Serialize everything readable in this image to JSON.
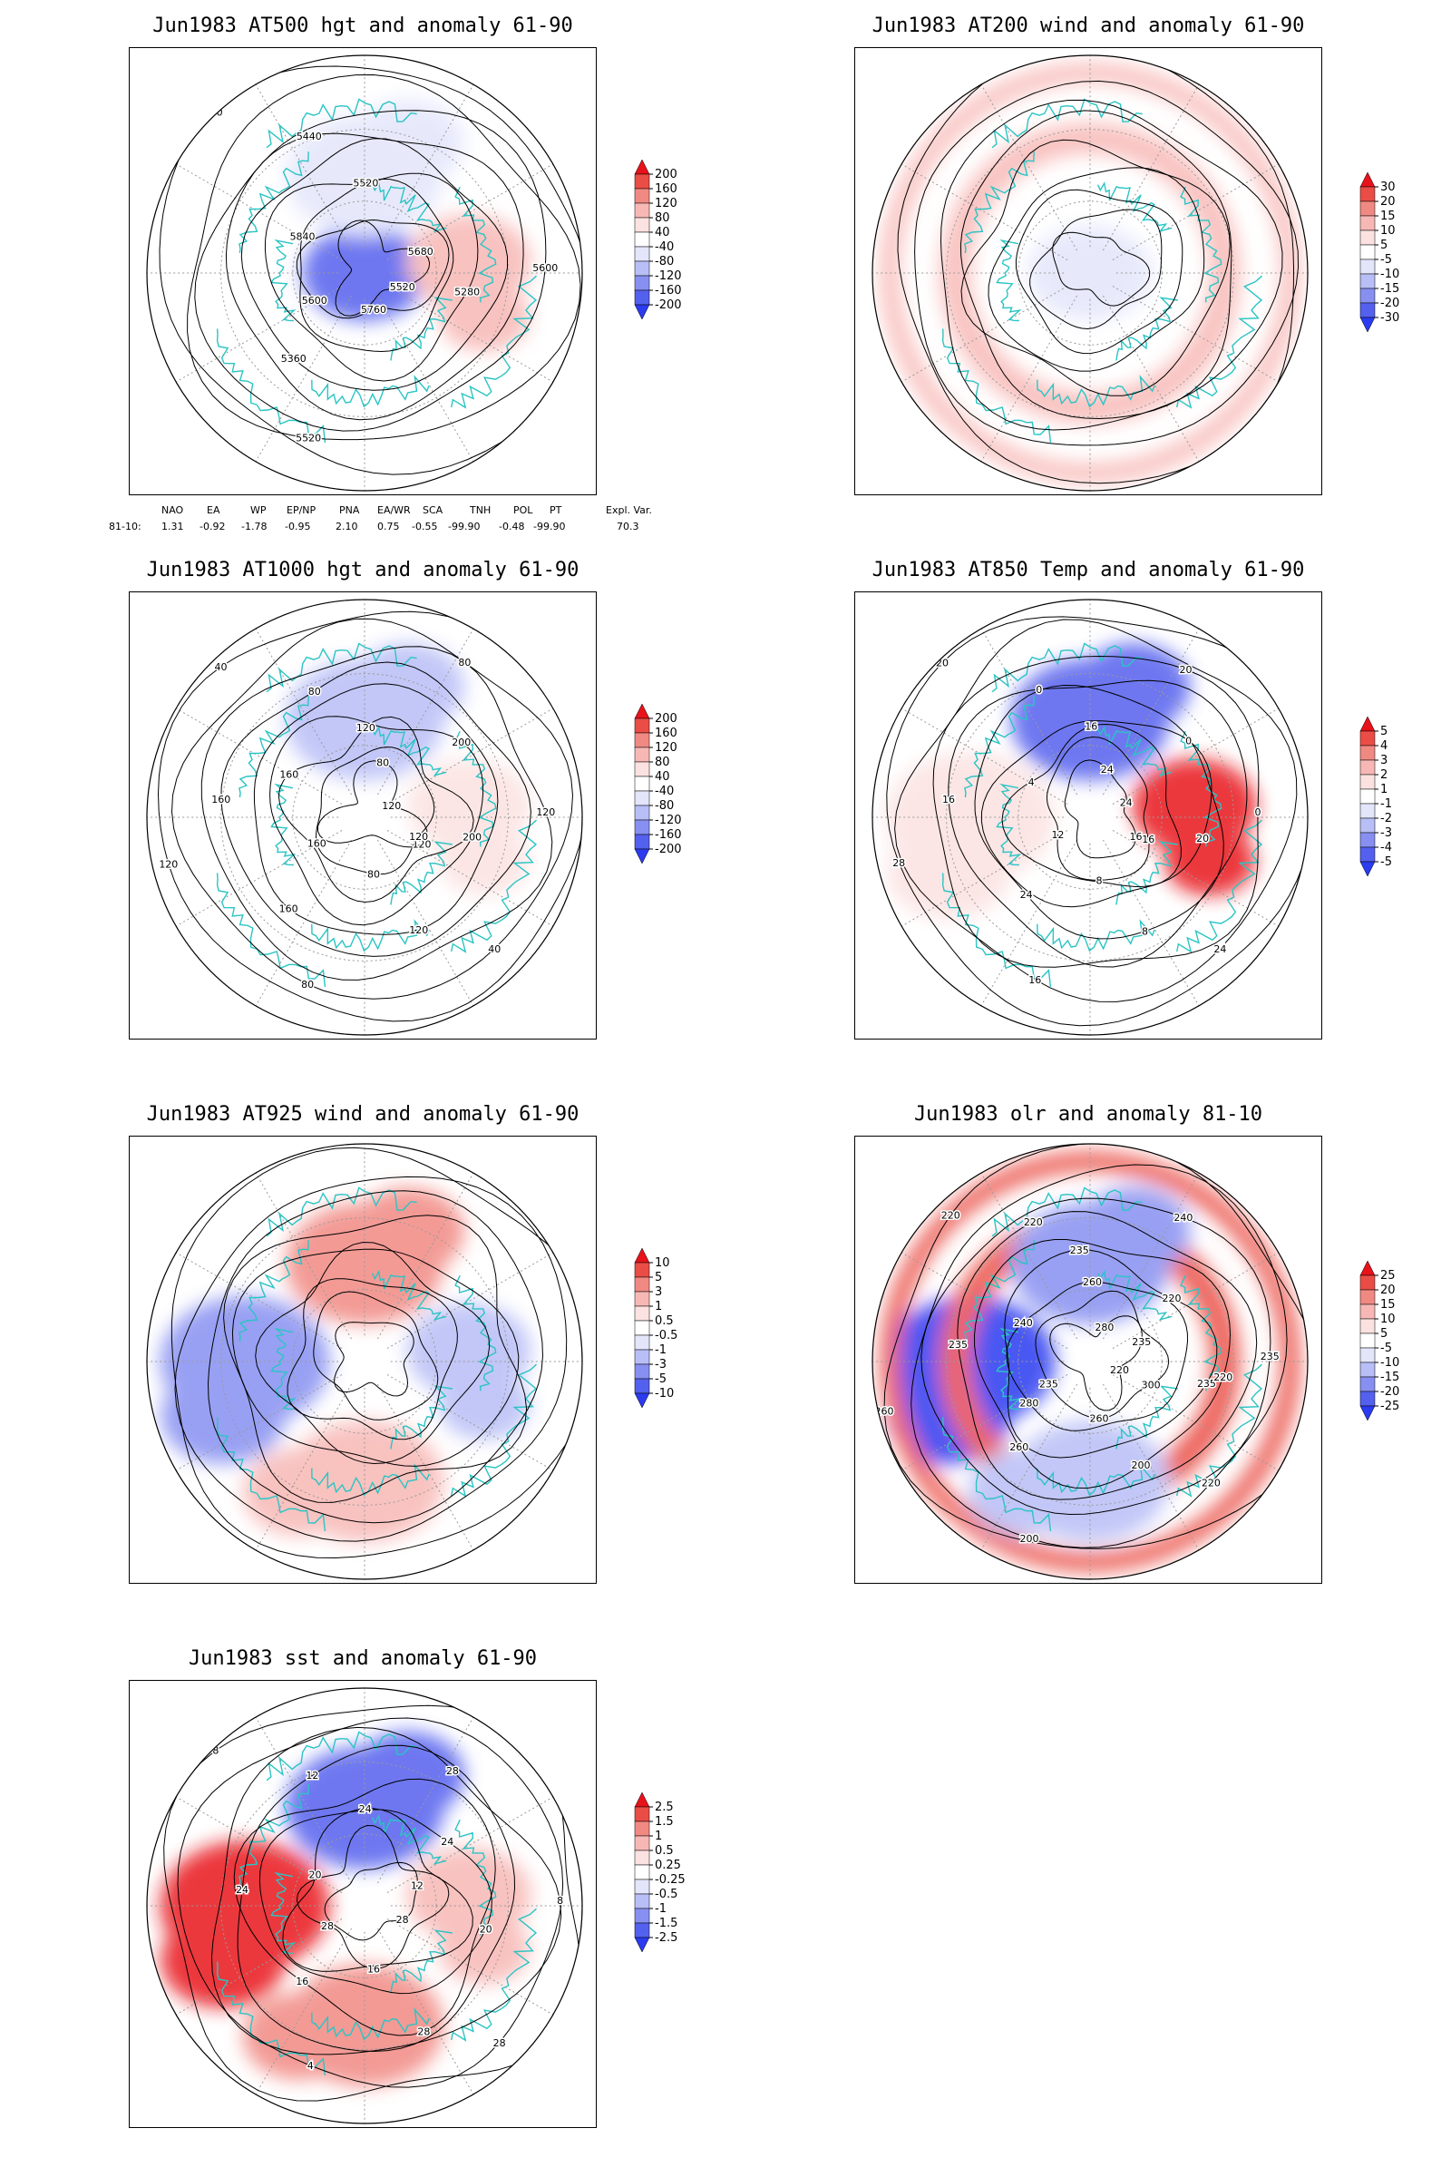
{
  "colors": {
    "coast": "#2bc4c4",
    "contour": "#000000",
    "grid": "#9a9a9a",
    "positive": "#e8121b",
    "negative": "#2a3bf0",
    "neutral": "#ffffff"
  },
  "panels": [
    {
      "id": "z500",
      "title": "Jun1983 AT500 hgt and anomaly 61-90",
      "colorbar": [
        "200",
        "160",
        "120",
        "80",
        "40",
        "-40",
        "-80",
        "-120",
        "-160",
        "-200"
      ],
      "contour_labels": [
        "5520",
        "5600",
        "5520",
        "5280",
        "5360",
        "5440",
        "5600",
        "5520",
        "5600",
        "5680",
        "5760",
        "5840"
      ],
      "anomaly": [
        {
          "sign": -1,
          "level": 4,
          "where": "pole"
        },
        {
          "sign": 1,
          "level": 2,
          "where": "east"
        },
        {
          "sign": -1,
          "level": 1,
          "where": "north"
        }
      ]
    },
    {
      "id": "u200",
      "title": "Jun1983 AT200 wind and anomaly 61-90",
      "colorbar": [
        "30",
        "20",
        "15",
        "10",
        "5",
        "-5",
        "-10",
        "-15",
        "-20",
        "-30"
      ],
      "contour_labels": [],
      "anomaly": [
        {
          "sign": 1,
          "level": 2,
          "where": "ring"
        },
        {
          "sign": -1,
          "level": 1,
          "where": "pole"
        }
      ]
    },
    {
      "id": "z1000",
      "title": "Jun1983 AT1000 hgt and anomaly 61-90",
      "colorbar": [
        "200",
        "160",
        "120",
        "80",
        "40",
        "-40",
        "-80",
        "-120",
        "-160",
        "-200"
      ],
      "contour_labels": [
        "120",
        "160",
        "120",
        "200",
        "160",
        "80",
        "120",
        "80",
        "40",
        "120",
        "80",
        "160",
        "200",
        "120",
        "160",
        "80",
        "40",
        "120",
        "80",
        "120"
      ],
      "anomaly": [
        {
          "sign": -1,
          "level": 2,
          "where": "north"
        },
        {
          "sign": 1,
          "level": 1,
          "where": "east"
        }
      ]
    },
    {
      "id": "t850",
      "title": "Jun1983 AT850 Temp and anomaly 61-90",
      "colorbar": [
        "5",
        "4",
        "3",
        "2",
        "1",
        "-1",
        "-2",
        "-3",
        "-4",
        "-5"
      ],
      "contour_labels": [
        "16",
        "12",
        "16",
        "20",
        "24",
        "0",
        "0",
        "16",
        "20",
        "24",
        "8",
        "4",
        "0",
        "8",
        "16",
        "20",
        "24",
        "28",
        "24",
        "16"
      ],
      "anomaly": [
        {
          "sign": -1,
          "level": 4,
          "where": "north"
        },
        {
          "sign": 1,
          "level": 5,
          "where": "east"
        },
        {
          "sign": 1,
          "level": 1,
          "where": "west"
        }
      ]
    },
    {
      "id": "u925",
      "title": "Jun1983 AT925 wind and anomaly 61-90",
      "colorbar": [
        "10",
        "5",
        "3",
        "1",
        "0.5",
        "-0.5",
        "-1",
        "-3",
        "-5",
        "-10"
      ],
      "contour_labels": [],
      "anomaly": [
        {
          "sign": 1,
          "level": 3,
          "where": "north"
        },
        {
          "sign": -1,
          "level": 3,
          "where": "west"
        },
        {
          "sign": 1,
          "level": 2,
          "where": "south"
        },
        {
          "sign": -1,
          "level": 2,
          "where": "east"
        }
      ]
    },
    {
      "id": "olr",
      "title": "Jun1983 olr and anomaly 81-10",
      "colorbar": [
        "25",
        "20",
        "15",
        "10",
        "5",
        "-5",
        "-10",
        "-15",
        "-20",
        "-25"
      ],
      "contour_labels": [
        "220",
        "235",
        "260",
        "235",
        "260",
        "220",
        "235",
        "200",
        "220",
        "235",
        "260",
        "240",
        "220",
        "200",
        "235",
        "240",
        "220",
        "260",
        "280",
        "300",
        "280",
        "235",
        "220"
      ],
      "anomaly": [
        {
          "sign": -1,
          "level": 5,
          "where": "west"
        },
        {
          "sign": 1,
          "level": 4,
          "where": "ring"
        },
        {
          "sign": -1,
          "level": 3,
          "where": "north"
        },
        {
          "sign": -1,
          "level": 2,
          "where": "south"
        }
      ]
    },
    {
      "id": "sst",
      "title": "Jun1983 sst and anomaly 61-90",
      "colorbar": [
        "2.5",
        "1.5",
        "1",
        "0.5",
        "0.25",
        "-0.25",
        "-0.5",
        "-1",
        "-1.5",
        "-2.5"
      ],
      "contour_labels": [
        "28",
        "28",
        "24",
        "20",
        "16",
        "12",
        "8",
        "4",
        "8",
        "12",
        "16",
        "20",
        "24",
        "28",
        "24",
        "28",
        "28"
      ],
      "anomaly": [
        {
          "sign": 1,
          "level": 5,
          "where": "west"
        },
        {
          "sign": -1,
          "level": 4,
          "where": "north"
        },
        {
          "sign": 1,
          "level": 3,
          "where": "south"
        },
        {
          "sign": 1,
          "level": 2,
          "where": "east"
        }
      ]
    }
  ],
  "indices": {
    "headers": [
      "NAO",
      "EA",
      "WP",
      "EP/NP",
      "PNA",
      "EA/WR",
      "SCA",
      "TNH",
      "POL",
      "PT",
      "Expl. Var."
    ],
    "row_label": "81-10:",
    "values": [
      "1.31",
      "-0.92",
      "-1.78",
      "-0.95",
      "2.10",
      "0.75",
      "-0.55",
      "-99.90",
      "-0.48",
      "-99.90",
      "70.3"
    ]
  }
}
